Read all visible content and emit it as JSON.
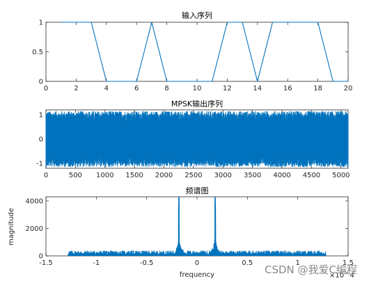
{
  "watermark": "CSDN @我爱C编程",
  "colors": {
    "line": "#0072BD",
    "axis": "#262626",
    "background": "#ffffff"
  },
  "chart_data": [
    {
      "type": "line",
      "title": "输入序列",
      "xlabel": "",
      "ylabel": "",
      "xlim": [
        0,
        20
      ],
      "ylim": [
        0,
        1
      ],
      "xticks": [
        0,
        2,
        4,
        6,
        8,
        10,
        12,
        14,
        16,
        18,
        20
      ],
      "yticks": [
        0,
        0.5,
        1
      ],
      "x": [
        1,
        2,
        3,
        4,
        5,
        6,
        7,
        8,
        9,
        10,
        11,
        12,
        13,
        14,
        15,
        16,
        17,
        18,
        19,
        20
      ],
      "y": [
        1,
        1,
        1,
        0,
        0,
        0,
        1,
        0,
        0,
        0,
        0,
        1,
        1,
        0,
        1,
        1,
        1,
        1,
        0,
        0
      ]
    },
    {
      "type": "line",
      "title": "MPSK输出序列",
      "xlabel": "",
      "ylabel": "",
      "xlim": [
        0,
        5120
      ],
      "ylim": [
        -1.2,
        1.2
      ],
      "xticks": [
        0,
        500,
        1000,
        1500,
        2000,
        2500,
        3000,
        3500,
        4000,
        4500,
        5000
      ],
      "yticks": [
        -1,
        0,
        1
      ],
      "signal": "dense oscillation between -1.15 and 1.15 across all samples"
    },
    {
      "type": "line",
      "title": "频谱图",
      "xlabel": "frequency",
      "ylabel": "magnitude",
      "xlim": [
        -1.5,
        1.5
      ],
      "ylim": [
        0,
        4300
      ],
      "xticks": [
        -1.5,
        -1,
        -0.5,
        0,
        0.5,
        1,
        1.5
      ],
      "yticks": [
        0,
        2000,
        4000
      ],
      "xaxis_exponent": "×10^4",
      "noise_range": [
        -1.28,
        1.28
      ],
      "noise_floor": 300,
      "peaks": [
        {
          "x": -0.18,
          "y": 4300
        },
        {
          "x": 0.18,
          "y": 4300
        }
      ]
    }
  ]
}
